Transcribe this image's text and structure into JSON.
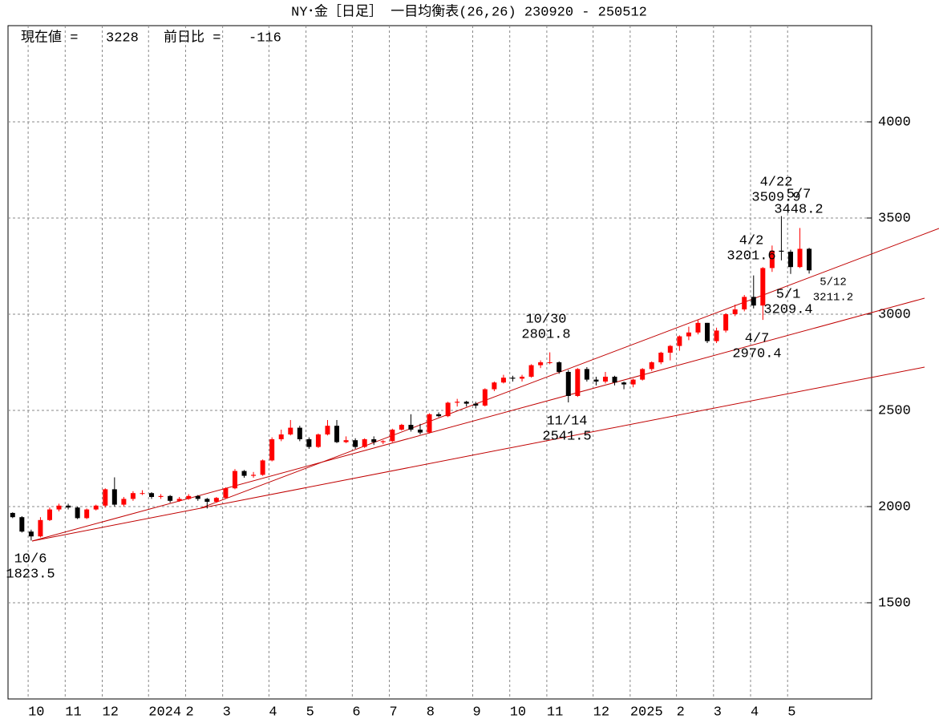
{
  "chart_data": {
    "type": "candlestick",
    "title": "NY･金［日足］ 一目均衡表(26,26)  230920 - 250512",
    "info": [
      {
        "label": "現在値 =",
        "value": 3228
      },
      {
        "label": "前日比 =",
        "value": -116
      }
    ],
    "categories": [
      null,
      null,
      "10",
      null,
      null,
      null,
      "11",
      null,
      null,
      null,
      "12",
      null,
      null,
      null,
      null,
      "2024",
      null,
      null,
      null,
      "2",
      null,
      null,
      null,
      "3",
      null,
      null,
      null,
      null,
      "4",
      null,
      null,
      null,
      "5",
      null,
      null,
      null,
      null,
      "6",
      null,
      null,
      null,
      "7",
      null,
      null,
      null,
      "8",
      null,
      null,
      null,
      null,
      "9",
      null,
      null,
      null,
      "10",
      null,
      null,
      null,
      "11",
      null,
      null,
      null,
      null,
      "12",
      null,
      null,
      null,
      "2025",
      null,
      null,
      null,
      null,
      "2",
      null,
      null,
      null,
      "3",
      null,
      null,
      null,
      "4",
      null,
      null,
      null,
      "5",
      null,
      null
    ],
    "open": [
      1967,
      1945,
      1870,
      1845,
      1930,
      1985,
      2005,
      1995,
      1940,
      1985,
      2005,
      2090,
      2010,
      2040,
      2070,
      2070,
      2050,
      2055,
      2030,
      2040,
      2055,
      2040,
      2025,
      2045,
      2095,
      2185,
      2160,
      2165,
      2240,
      2350,
      2375,
      2410,
      2350,
      2310,
      2375,
      2420,
      2335,
      2345,
      2310,
      2350,
      2335,
      2340,
      2400,
      2425,
      2400,
      2385,
      2480,
      2470,
      2540,
      2545,
      2535,
      2525,
      2610,
      2645,
      2670,
      2665,
      2675,
      2735,
      2750,
      2750,
      2700,
      2575,
      2715,
      2660,
      2650,
      2675,
      2645,
      2635,
      2660,
      2715,
      2750,
      2800,
      2835,
      2885,
      2905,
      2955,
      2860,
      2915,
      3000,
      3025,
      3090,
      3045,
      3240,
      3330,
      3325,
      3245,
      3340
    ],
    "high": [
      1970,
      1950,
      1880,
      1945,
      1995,
      2015,
      2015,
      2000,
      1990,
      2010,
      2095,
      2152,
      2050,
      2080,
      2085,
      2075,
      2065,
      2060,
      2050,
      2065,
      2060,
      2045,
      2050,
      2100,
      2195,
      2190,
      2180,
      2245,
      2360,
      2400,
      2450,
      2420,
      2360,
      2380,
      2450,
      2450,
      2365,
      2355,
      2355,
      2365,
      2345,
      2405,
      2430,
      2480,
      2430,
      2485,
      2490,
      2545,
      2560,
      2550,
      2545,
      2615,
      2650,
      2685,
      2680,
      2685,
      2740,
      2760,
      2801.8,
      2755,
      2710,
      2720,
      2725,
      2675,
      2700,
      2680,
      2650,
      2665,
      2720,
      2755,
      2805,
      2840,
      2890,
      2935,
      2970,
      2955,
      2930,
      3005,
      3050,
      3100,
      3201.6,
      3245,
      3357,
      3509.9,
      3335,
      3448.2,
      3345
    ],
    "low": [
      1940,
      1865,
      1823.5,
      1840,
      1925,
      1975,
      1985,
      1935,
      1935,
      1980,
      1995,
      2000,
      2000,
      2030,
      2060,
      2040,
      2040,
      2020,
      2025,
      2035,
      2030,
      1990,
      2020,
      2040,
      2090,
      2150,
      2150,
      2160,
      2235,
      2340,
      2370,
      2340,
      2300,
      2305,
      2370,
      2330,
      2330,
      2300,
      2305,
      2320,
      2325,
      2335,
      2395,
      2390,
      2375,
      2380,
      2465,
      2465,
      2520,
      2520,
      2510,
      2520,
      2600,
      2640,
      2650,
      2650,
      2670,
      2720,
      2740,
      2690,
      2541.5,
      2570,
      2650,
      2630,
      2640,
      2630,
      2610,
      2620,
      2655,
      2705,
      2740,
      2760,
      2810,
      2865,
      2895,
      2850,
      2850,
      2905,
      2990,
      3015,
      3030,
      2970.4,
      3220,
      3280,
      3209.4,
      3240,
      3211.2
    ],
    "close": [
      1945,
      1870,
      1845,
      1930,
      1985,
      2005,
      1995,
      1940,
      1985,
      2005,
      2090,
      2010,
      2040,
      2070,
      2070,
      2050,
      2055,
      2030,
      2040,
      2055,
      2040,
      2025,
      2045,
      2095,
      2185,
      2160,
      2165,
      2240,
      2350,
      2375,
      2410,
      2350,
      2310,
      2375,
      2420,
      2335,
      2345,
      2310,
      2350,
      2335,
      2340,
      2400,
      2425,
      2400,
      2385,
      2480,
      2470,
      2540,
      2545,
      2535,
      2525,
      2610,
      2645,
      2670,
      2665,
      2675,
      2735,
      2750,
      2750,
      2700,
      2575,
      2715,
      2660,
      2650,
      2675,
      2645,
      2635,
      2660,
      2715,
      2750,
      2800,
      2835,
      2885,
      2905,
      2955,
      2860,
      2915,
      3000,
      3025,
      3090,
      3045,
      3240,
      3330,
      3325,
      3245,
      3340,
      3228
    ],
    "up_color": "#ff0000",
    "down_color": "#000000",
    "ylim": [
      1000,
      4500
    ],
    "yticks": [
      1500,
      2000,
      2500,
      3000,
      3500,
      4000
    ],
    "grid": true,
    "annotations": [
      {
        "date": "10/6",
        "value": 1823.5
      },
      {
        "date": "10/30",
        "value": 2801.8
      },
      {
        "date": "11/14",
        "value": 2541.5
      },
      {
        "date": "4/2",
        "value": 3201.6
      },
      {
        "date": "4/7",
        "value": 2970.4
      },
      {
        "date": "5/1",
        "value": 3209.4
      },
      {
        "date": "4/22",
        "value": 3509.9
      },
      {
        "date": "5/7",
        "value": 3448.2
      },
      {
        "date": "5/12",
        "value": 3211.2
      }
    ]
  }
}
